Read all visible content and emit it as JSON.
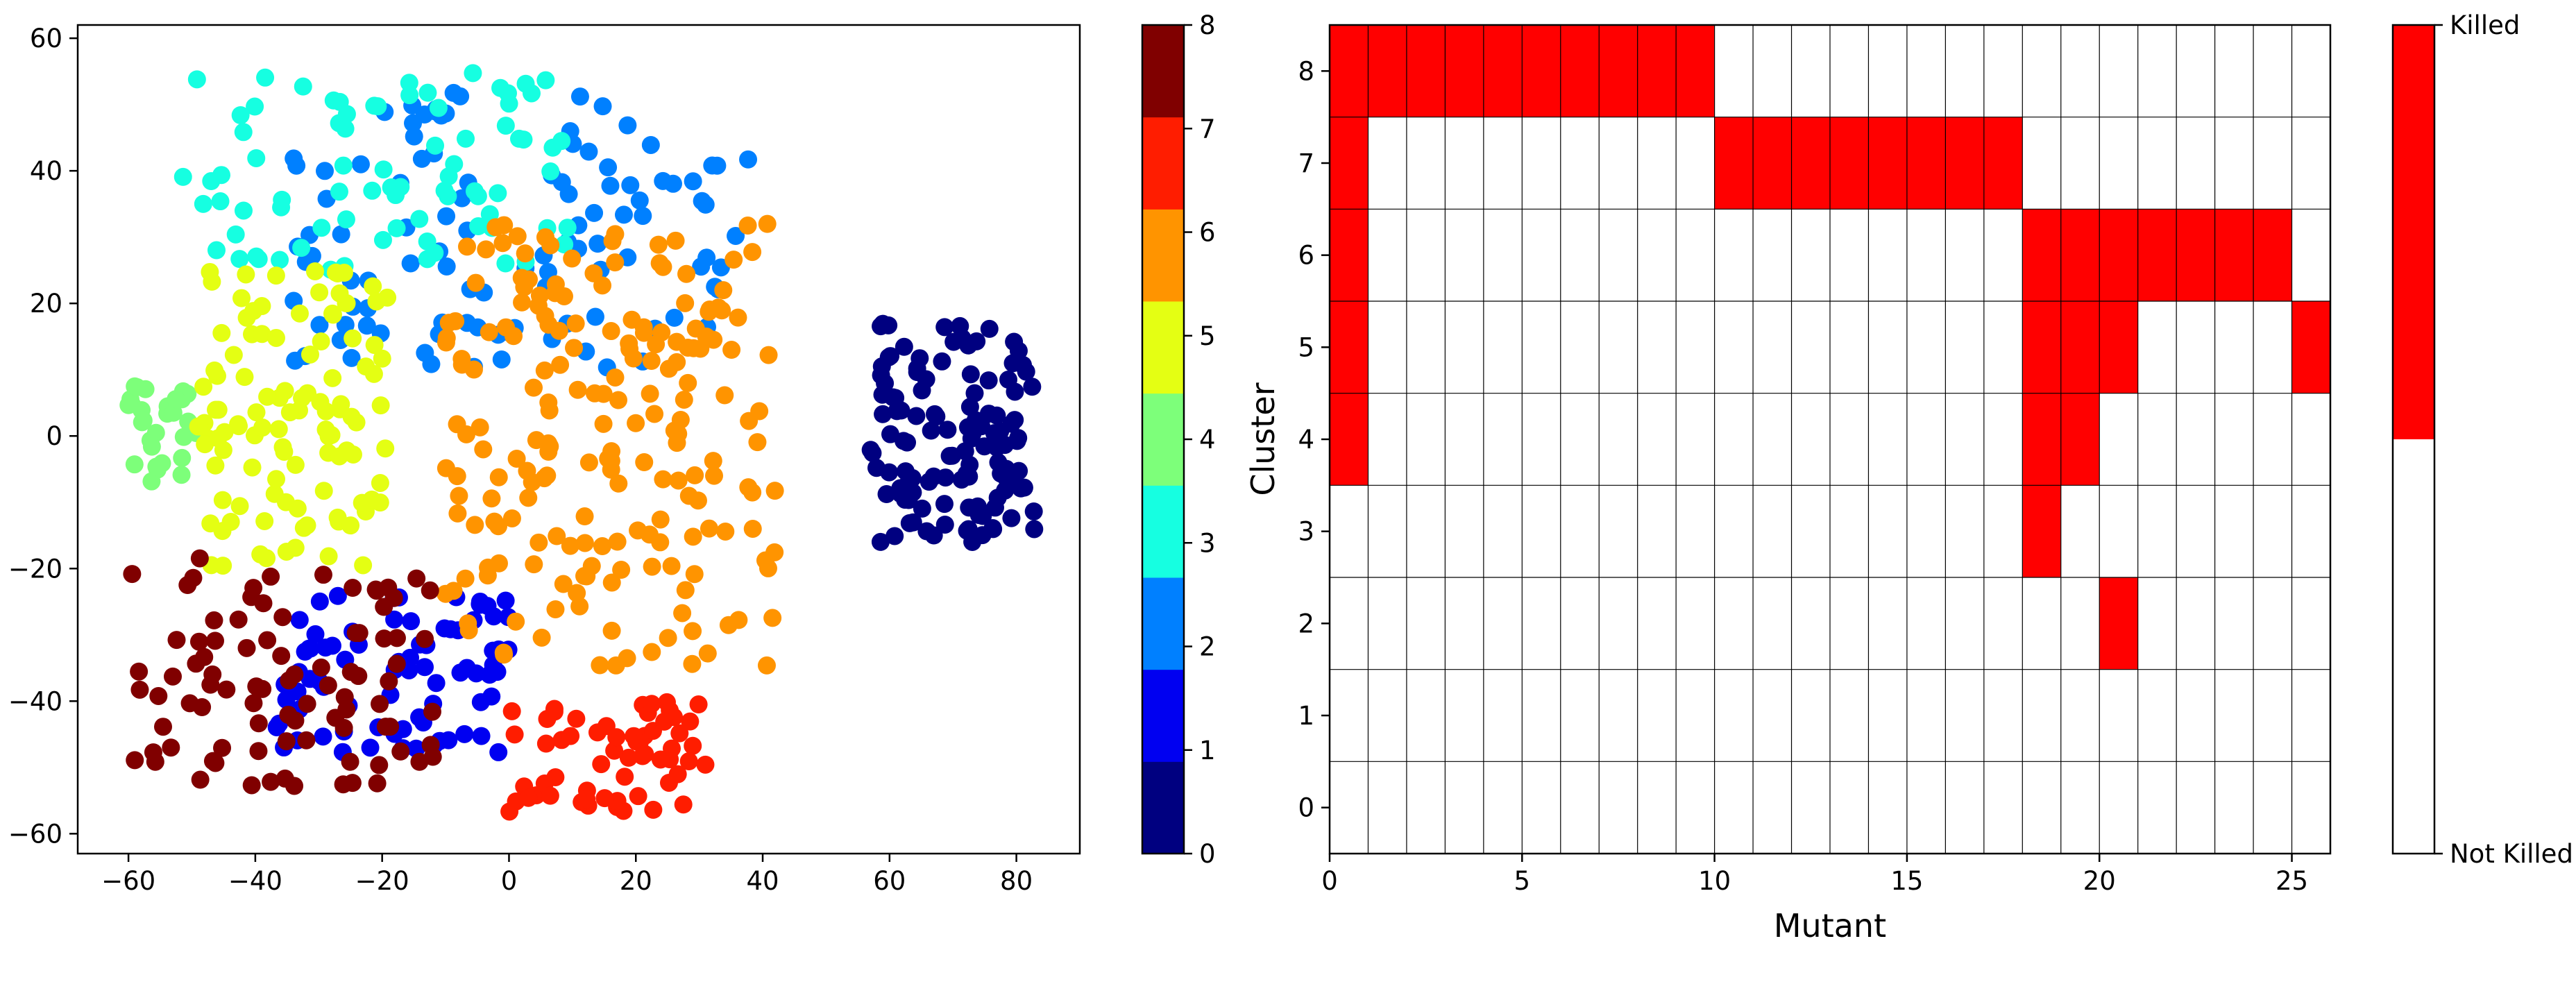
{
  "chart_data": [
    {
      "type": "scatter",
      "title": "",
      "xlabel": "",
      "ylabel": "",
      "xlim": [
        -68,
        90
      ],
      "ylim": [
        -63,
        62
      ],
      "xticks": [
        -60,
        -40,
        -20,
        0,
        20,
        40,
        60,
        80
      ],
      "yticks": [
        -60,
        -40,
        -20,
        0,
        20,
        40,
        60
      ],
      "xtick_labels": [
        "−60",
        "−40",
        "−20",
        "0",
        "20",
        "40",
        "60",
        "80"
      ],
      "ytick_labels": [
        "−60",
        "−40",
        "−20",
        "0",
        "20",
        "40",
        "60"
      ],
      "grid": false,
      "colormap": "jet",
      "colorbar": {
        "range": [
          0,
          8
        ],
        "ticks": [
          0,
          1,
          2,
          3,
          4,
          5,
          6,
          7,
          8
        ],
        "tick_labels": [
          "0",
          "1",
          "2",
          "3",
          "4",
          "5",
          "6",
          "7",
          "8"
        ],
        "colors": [
          "#000080",
          "#0000f1",
          "#0080ff",
          "#16ffe1",
          "#7dff7a",
          "#e4ff13",
          "#ff9400",
          "#ff1d00",
          "#800000"
        ]
      },
      "clusters": [
        {
          "id": 0,
          "color": "#000080",
          "approx_region": {
            "x": [
              57,
              83
            ],
            "y": [
              -16,
              17
            ]
          }
        },
        {
          "id": 1,
          "color": "#0000f1",
          "approx_region": {
            "x": [
              -37,
              0
            ],
            "y": [
              -48,
              -24
            ]
          }
        },
        {
          "id": 2,
          "color": "#0080ff",
          "approx_region": {
            "x": [
              -34,
              38
            ],
            "y": [
              10,
              52
            ]
          }
        },
        {
          "id": 3,
          "color": "#16ffe1",
          "approx_region": {
            "x": [
              -52,
              12
            ],
            "y": [
              25,
              56
            ]
          }
        },
        {
          "id": 4,
          "color": "#7dff7a",
          "approx_region": {
            "x": [
              -60,
              -48
            ],
            "y": [
              -7,
              8
            ]
          }
        },
        {
          "id": 5,
          "color": "#e4ff13",
          "approx_region": {
            "x": [
              -49,
              -19
            ],
            "y": [
              -20,
              25
            ]
          }
        },
        {
          "id": 6,
          "color": "#ff9400",
          "approx_region": {
            "x": [
              -10,
              42
            ],
            "y": [
              -35,
              32
            ]
          }
        },
        {
          "id": 7,
          "color": "#ff1d00",
          "approx_region": {
            "x": [
              0,
              31
            ],
            "y": [
              -57,
              -40
            ]
          }
        },
        {
          "id": 8,
          "color": "#800000",
          "approx_region": {
            "x": [
              -60,
              -12
            ],
            "y": [
              -53,
              -18
            ]
          }
        }
      ]
    },
    {
      "type": "heatmap",
      "title": "",
      "xlabel": "Mutant",
      "ylabel": "Cluster",
      "xlim": [
        0,
        26
      ],
      "ylim": [
        -0.5,
        8.5
      ],
      "xticks": [
        0,
        5,
        10,
        15,
        20,
        25
      ],
      "yticks": [
        0,
        1,
        2,
        3,
        4,
        5,
        6,
        7,
        8
      ],
      "xtick_labels": [
        "0",
        "5",
        "10",
        "15",
        "20",
        "25"
      ],
      "ytick_labels": [
        "0",
        "1",
        "2",
        "3",
        "4",
        "5",
        "6",
        "7",
        "8"
      ],
      "grid": true,
      "columns": 26,
      "rows": 9,
      "colors": {
        "killed": "#ff0000",
        "not_killed": "#ffffff"
      },
      "killed_cells": [
        [
          0,
          8
        ],
        [
          1,
          8
        ],
        [
          2,
          8
        ],
        [
          3,
          8
        ],
        [
          4,
          8
        ],
        [
          5,
          8
        ],
        [
          6,
          8
        ],
        [
          7,
          8
        ],
        [
          8,
          8
        ],
        [
          9,
          8
        ],
        [
          0,
          7
        ],
        [
          10,
          7
        ],
        [
          11,
          7
        ],
        [
          12,
          7
        ],
        [
          13,
          7
        ],
        [
          14,
          7
        ],
        [
          15,
          7
        ],
        [
          16,
          7
        ],
        [
          17,
          7
        ],
        [
          0,
          6
        ],
        [
          18,
          6
        ],
        [
          19,
          6
        ],
        [
          20,
          6
        ],
        [
          21,
          6
        ],
        [
          22,
          6
        ],
        [
          23,
          6
        ],
        [
          24,
          6
        ],
        [
          0,
          5
        ],
        [
          18,
          5
        ],
        [
          19,
          5
        ],
        [
          20,
          5
        ],
        [
          25,
          5
        ],
        [
          0,
          4
        ],
        [
          18,
          4
        ],
        [
          19,
          4
        ],
        [
          18,
          3
        ],
        [
          20,
          2
        ]
      ],
      "legend": {
        "top_label": "Killed",
        "bottom_label": "Not Killed"
      }
    }
  ]
}
